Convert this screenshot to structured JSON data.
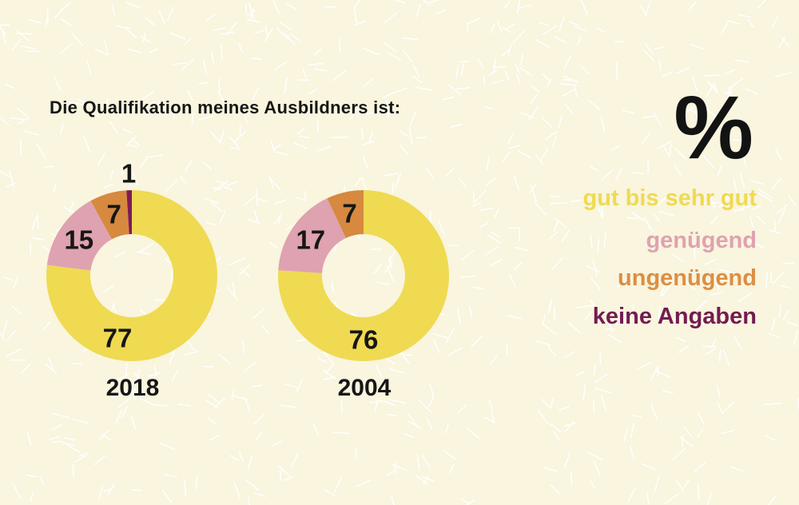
{
  "page": {
    "title": "Die Qualifikation meines Ausbildners ist:",
    "unit_symbol": "%"
  },
  "colors": {
    "background": "#F9F5DE",
    "confetti": "#FFFFFF",
    "text": "#161616",
    "gut_bis_sehr_gut": "#EFDA52",
    "genuegend": "#DFA2B0",
    "ungenuegend": "#D6893F",
    "keine_angaben": "#7E1B56"
  },
  "legend": {
    "position": "right",
    "items": [
      {
        "label": "gut bis sehr gut",
        "color": "#EFDA52"
      },
      {
        "label": "genügend",
        "color": "#DFA2B0"
      },
      {
        "label": "ungenügend",
        "color": "#DC8F42"
      },
      {
        "label": "keine Angaben",
        "color": "#731C52"
      }
    ]
  },
  "chart_data": [
    {
      "type": "pie",
      "subtype": "donut",
      "title": "2018",
      "unit": "%",
      "categories": [
        "gut bis sehr gut",
        "genügend",
        "ungenügend",
        "keine Angaben"
      ],
      "values": [
        77,
        15,
        7,
        1
      ],
      "colors": [
        "#EFDA52",
        "#DFA2B0",
        "#D6893F",
        "#7E1B56"
      ],
      "start_angle": "top",
      "direction": "clockwise",
      "legend_position": "right"
    },
    {
      "type": "pie",
      "subtype": "donut",
      "title": "2004",
      "unit": "%",
      "categories": [
        "gut bis sehr gut",
        "genügend",
        "ungenügend"
      ],
      "values": [
        76,
        17,
        7
      ],
      "colors": [
        "#EFDA52",
        "#DFA2B0",
        "#D6893F"
      ],
      "start_angle": "top",
      "direction": "clockwise",
      "legend_position": "right"
    }
  ]
}
